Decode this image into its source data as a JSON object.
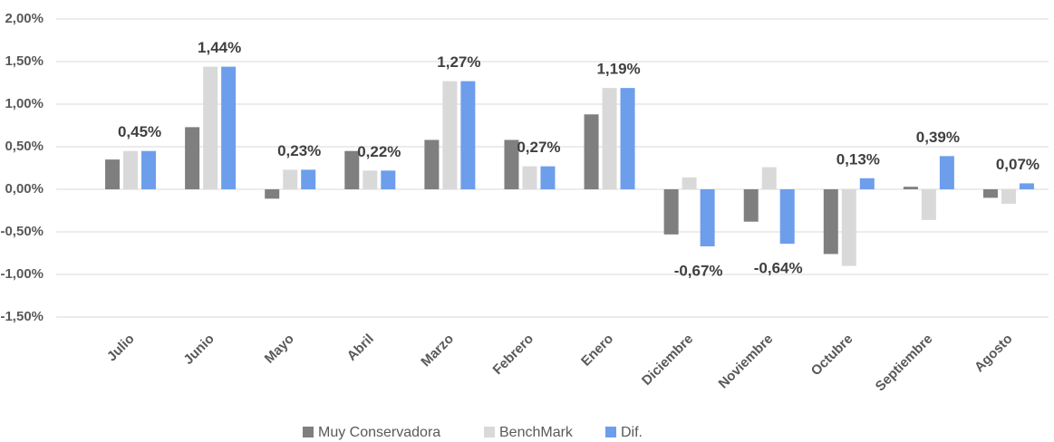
{
  "chart_data": {
    "type": "bar",
    "categories": [
      "Julio",
      "Junio",
      "Mayo",
      "Abril",
      "Marzo",
      "Febrero",
      "Enero",
      "Diciembre",
      "Noviembre",
      "Octubre",
      "Septiembre",
      "Agosto"
    ],
    "series": [
      {
        "name": "Muy Conservadora",
        "color": "#7f7f7f",
        "values": [
          0.35,
          0.73,
          -0.11,
          0.45,
          0.58,
          0.58,
          0.88,
          -0.53,
          -0.38,
          -0.76,
          0.03,
          -0.1
        ]
      },
      {
        "name": "BenchMark",
        "color": "#d9d9d9",
        "values": [
          0.45,
          1.44,
          0.23,
          0.22,
          1.27,
          0.27,
          1.19,
          0.14,
          0.26,
          -0.9,
          -0.36,
          -0.17
        ]
      },
      {
        "name": "Dif.",
        "color": "#6d9eeb",
        "values": [
          0.45,
          1.44,
          0.23,
          0.22,
          1.27,
          0.27,
          1.19,
          -0.67,
          -0.64,
          0.13,
          0.39,
          0.07
        ],
        "value_labels": [
          "0,45%",
          "1,44%",
          "0,23%",
          "0,22%",
          "1,27%",
          "0,27%",
          "1,19%",
          "-0,67%",
          "-0,64%",
          "0,13%",
          "0,39%",
          "0,07%"
        ]
      }
    ],
    "ylim": [
      -1.5,
      2.0
    ],
    "yticks": [
      {
        "value": -1.5,
        "label": "-1,50%"
      },
      {
        "value": -1.0,
        "label": "-1,00%"
      },
      {
        "value": -0.5,
        "label": "-0,50%"
      },
      {
        "value": 0,
        "label": "0,00%"
      },
      {
        "value": 0.5,
        "label": "0,50%"
      },
      {
        "value": 1.0,
        "label": "1,00%"
      },
      {
        "value": 1.5,
        "label": "1,50%"
      },
      {
        "value": 2.0,
        "label": "2,00%"
      }
    ],
    "grid": true,
    "legend": "bottom"
  }
}
